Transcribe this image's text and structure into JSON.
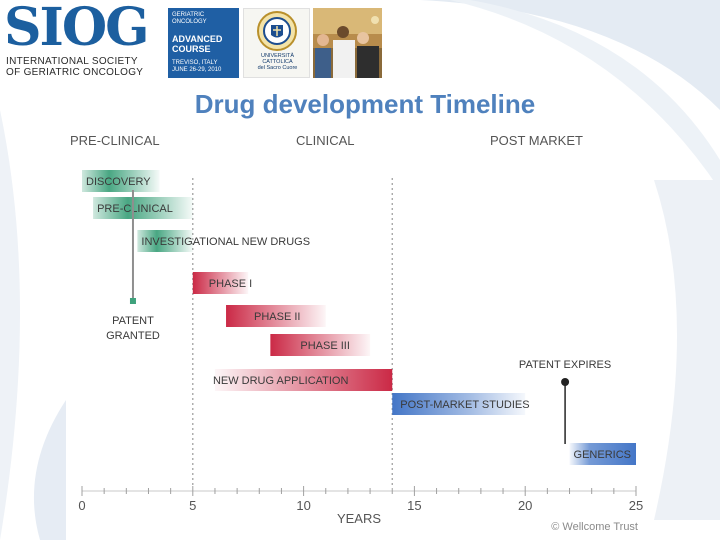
{
  "header": {
    "logo_wordmark": "SIOG",
    "society_line_1": "INTERNATIONAL SOCIETY",
    "society_line_2": "OF GERIATRIC ONCOLOGY",
    "course": {
      "line_1": "GERIATRIC",
      "line_2": "ONCOLOGY",
      "line_3": "ADVANCED",
      "line_4": "COURSE",
      "location": "TREVISO, ITALY",
      "dates": "JUNE 26-29, 2010"
    },
    "university_seal": {
      "line_1": "UNIVERSITÀ",
      "line_2": "CATTOLICA",
      "line_3": "del Sacro Cuore"
    }
  },
  "slide": {
    "title": "Drug development Timeline"
  },
  "colors": {
    "title": "#4f81bd",
    "green": "#3fa27c",
    "red": "#c81e3c",
    "blue": "#3a6fc4",
    "grid": "#b5b5b5",
    "text": "#3a3a3a"
  },
  "chart_data": {
    "type": "gantt",
    "xlabel": "YEARS",
    "xlim": [
      0,
      25
    ],
    "xticks": [
      0,
      5,
      10,
      15,
      20,
      25
    ],
    "minor_tick_step": 1,
    "sections": [
      {
        "label": "PRE-CLINICAL",
        "start": 0
      },
      {
        "label": "CLINICAL",
        "start": 5
      },
      {
        "label": "POST MARKET",
        "start": 14
      }
    ],
    "dividers": [
      5,
      14
    ],
    "bars": [
      {
        "label": "DISCOVERY",
        "start": 0,
        "end": 3.5,
        "color": "green"
      },
      {
        "label": "PRE-CLINICAL",
        "start": 0.5,
        "end": 5,
        "color": "green"
      },
      {
        "label": "INVESTIGATIONAL NEW DRUGS",
        "start": 2.5,
        "end": 5,
        "color": "green"
      },
      {
        "label": "PHASE I",
        "start": 5,
        "end": 7.5,
        "color": "red"
      },
      {
        "label": "PHASE II",
        "start": 6.5,
        "end": 11,
        "color": "red"
      },
      {
        "label": "PHASE III",
        "start": 8.5,
        "end": 13,
        "color": "red"
      },
      {
        "label": "NEW DRUG APPLICATION",
        "start": 6,
        "end": 14,
        "color": "red"
      },
      {
        "label": "POST-MARKET STUDIES",
        "start": 14,
        "end": 20,
        "color": "blue"
      },
      {
        "label": "GENERICS",
        "start": 22,
        "end": 25,
        "color": "blue"
      }
    ],
    "markers": [
      {
        "label_line_1": "PATENT",
        "label_line_2": "GRANTED",
        "year": 2.3
      },
      {
        "label_line_1": "PATENT EXPIRES",
        "label_line_2": "",
        "year": 21.8
      }
    ],
    "credit": "© Wellcome Trust"
  }
}
